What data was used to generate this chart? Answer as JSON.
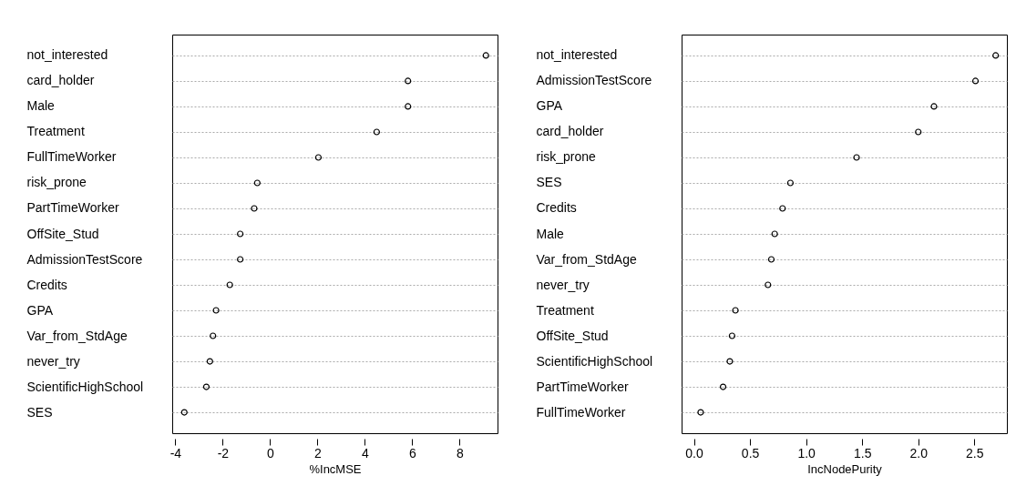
{
  "chart_data": [
    {
      "type": "scatter",
      "orientation": "horizontal",
      "xlabel": "%IncMSE",
      "categories": [
        "not_interested",
        "card_holder",
        "Male",
        "Treatment",
        "FullTimeWorker",
        "risk_prone",
        "PartTimeWorker",
        "OffSite_Stud",
        "AdmissionTestScore",
        "Credits",
        "GPA",
        "Var_from_StdAge",
        "never_try",
        "ScientificHighSchool",
        "SES"
      ],
      "values": [
        9.11,
        5.82,
        5.82,
        4.5,
        2.04,
        -0.54,
        -0.67,
        -1.26,
        -1.26,
        -1.7,
        -2.28,
        -2.41,
        -2.54,
        -2.69,
        -3.62
      ],
      "color": "#000000",
      "marker": "circle",
      "grid": "y",
      "xlim": [
        -4.13,
        9.6
      ],
      "xticks": [
        -4,
        -2,
        0,
        2,
        4,
        6,
        8
      ]
    },
    {
      "type": "scatter",
      "orientation": "horizontal",
      "xlabel": "IncNodePurity",
      "categories": [
        "not_interested",
        "AdmissionTestScore",
        "GPA",
        "card_holder",
        "risk_prone",
        "SES",
        "Credits",
        "Male",
        "Var_from_StdAge",
        "never_try",
        "Treatment",
        "OffSite_Stud",
        "ScientificHighSchool",
        "PartTimeWorker",
        "FullTimeWorker"
      ],
      "values": [
        2.69,
        2.51,
        2.14,
        2.0,
        1.45,
        0.86,
        0.79,
        0.72,
        0.69,
        0.66,
        0.37,
        0.34,
        0.32,
        0.26,
        0.06
      ],
      "color": "#000000",
      "marker": "circle",
      "grid": "y",
      "xlim": [
        -0.11,
        2.79
      ],
      "xticks": [
        {
          "value": 0,
          "label": "0.0"
        },
        {
          "value": 0.5,
          "label": "0.5"
        },
        {
          "value": 1,
          "label": "1.0"
        },
        {
          "value": 1.5,
          "label": "1.5"
        },
        {
          "value": 2,
          "label": "2.0"
        },
        {
          "value": 2.5,
          "label": "2.5"
        }
      ]
    }
  ]
}
